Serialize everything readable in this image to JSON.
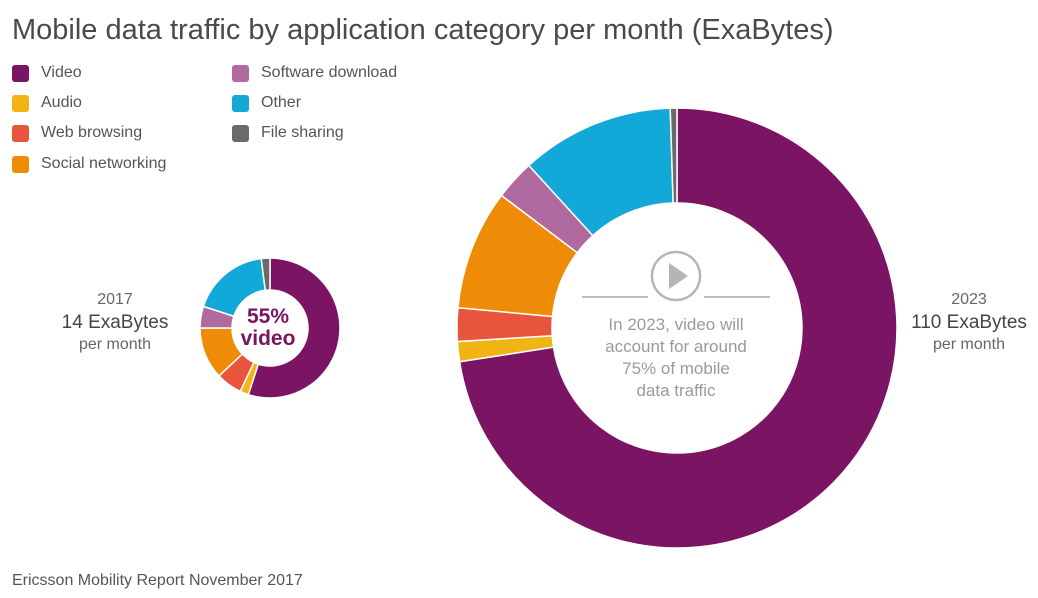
{
  "title": "Mobile data traffic by application category per month (ExaBytes)",
  "source": "Ericsson Mobility Report November 2017",
  "legend": [
    {
      "label": "Video",
      "color": "#7b1463"
    },
    {
      "label": "Audio",
      "color": "#f0b414"
    },
    {
      "label": "Web browsing",
      "color": "#e8553c"
    },
    {
      "label": "Social networking",
      "color": "#ee8c08"
    },
    {
      "label": "Software download",
      "color": "#b06a9f"
    },
    {
      "label": "Other",
      "color": "#12a8d8"
    },
    {
      "label": "File sharing",
      "color": "#6a6a6a"
    }
  ],
  "chart_data": [
    {
      "type": "pie",
      "year": "2017",
      "total": "14 ExaBytes",
      "per": "per month",
      "center_text": [
        "55%",
        "video"
      ],
      "categories": [
        "Video",
        "Audio",
        "Web browsing",
        "Social networking",
        "Software download",
        "Other",
        "File sharing"
      ],
      "values": [
        55,
        2,
        6,
        12,
        5,
        18,
        2
      ]
    },
    {
      "type": "pie",
      "year": "2023",
      "total": "110 ExaBytes",
      "per": "per month",
      "center_text": [
        "In 2023, video will",
        "account for around",
        "75% of mobile",
        "data traffic"
      ],
      "categories": [
        "Video",
        "Audio",
        "Web browsing",
        "Social networking",
        "Software download",
        "Other",
        "File sharing"
      ],
      "values": [
        74,
        1.5,
        2.5,
        9,
        3,
        11.5,
        0.5
      ]
    }
  ]
}
